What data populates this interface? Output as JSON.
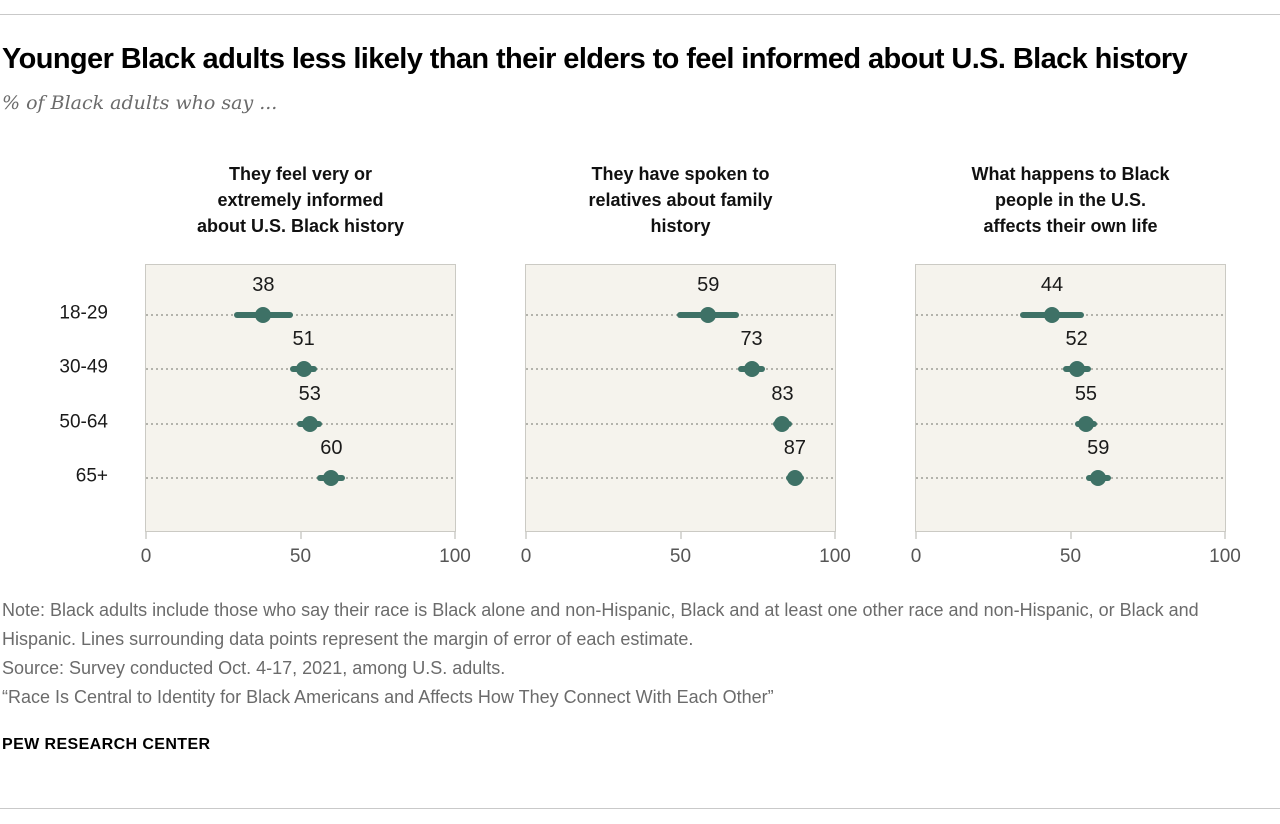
{
  "header": {
    "title": "Younger Black adults less likely than their elders to feel informed about U.S. Black history",
    "subtitle": "% of Black adults who say ..."
  },
  "colors": {
    "accent": "#3e7166",
    "plot_bg": "#f5f3ed",
    "plot_border": "#cbcac4",
    "grid_dot": "#b3b3ac",
    "value_text": "#1a1a1a",
    "tick_text": "#565656"
  },
  "chart_data": [
    {
      "type": "scatter",
      "variant": "dot-with-error-bars",
      "title": "They feel very or\nextremely informed\nabout U.S. Black history",
      "categories": [
        "18-29",
        "30-49",
        "50-64",
        "65+"
      ],
      "values": [
        38,
        51,
        53,
        60
      ],
      "moe": [
        9.5,
        4.5,
        4,
        4.5
      ],
      "xlim": [
        0,
        100
      ],
      "xticks": [
        0,
        50,
        100
      ],
      "grid": "dotted-horizontal",
      "legend": "none"
    },
    {
      "type": "scatter",
      "variant": "dot-with-error-bars",
      "title": "They have spoken to\nrelatives about family\nhistory",
      "categories": [
        "18-29",
        "30-49",
        "50-64",
        "65+"
      ],
      "values": [
        59,
        73,
        83,
        87
      ],
      "moe": [
        10,
        4.5,
        3,
        3
      ],
      "xlim": [
        0,
        100
      ],
      "xticks": [
        0,
        50,
        100
      ],
      "grid": "dotted-horizontal",
      "legend": "none"
    },
    {
      "type": "scatter",
      "variant": "dot-with-error-bars",
      "title": "What happens to Black\npeople in the U.S.\naffects their own life",
      "categories": [
        "18-29",
        "30-49",
        "50-64",
        "65+"
      ],
      "values": [
        44,
        52,
        55,
        59
      ],
      "moe": [
        10.5,
        4.5,
        3.5,
        4
      ],
      "xlim": [
        0,
        100
      ],
      "xticks": [
        0,
        50,
        100
      ],
      "grid": "dotted-horizontal",
      "legend": "none"
    }
  ],
  "footer": {
    "note": "Note: Black adults include those who say their race is Black alone and non-Hispanic, Black and at least one other race and non-Hispanic, or Black and Hispanic. Lines surrounding data points represent the margin of error of each estimate.",
    "source": "Source: Survey conducted Oct. 4-17, 2021, among U.S. adults.",
    "quote": "“Race Is Central to Identity for Black Americans and Affects How They Connect With Each Other”",
    "brand": "PEW RESEARCH CENTER"
  }
}
